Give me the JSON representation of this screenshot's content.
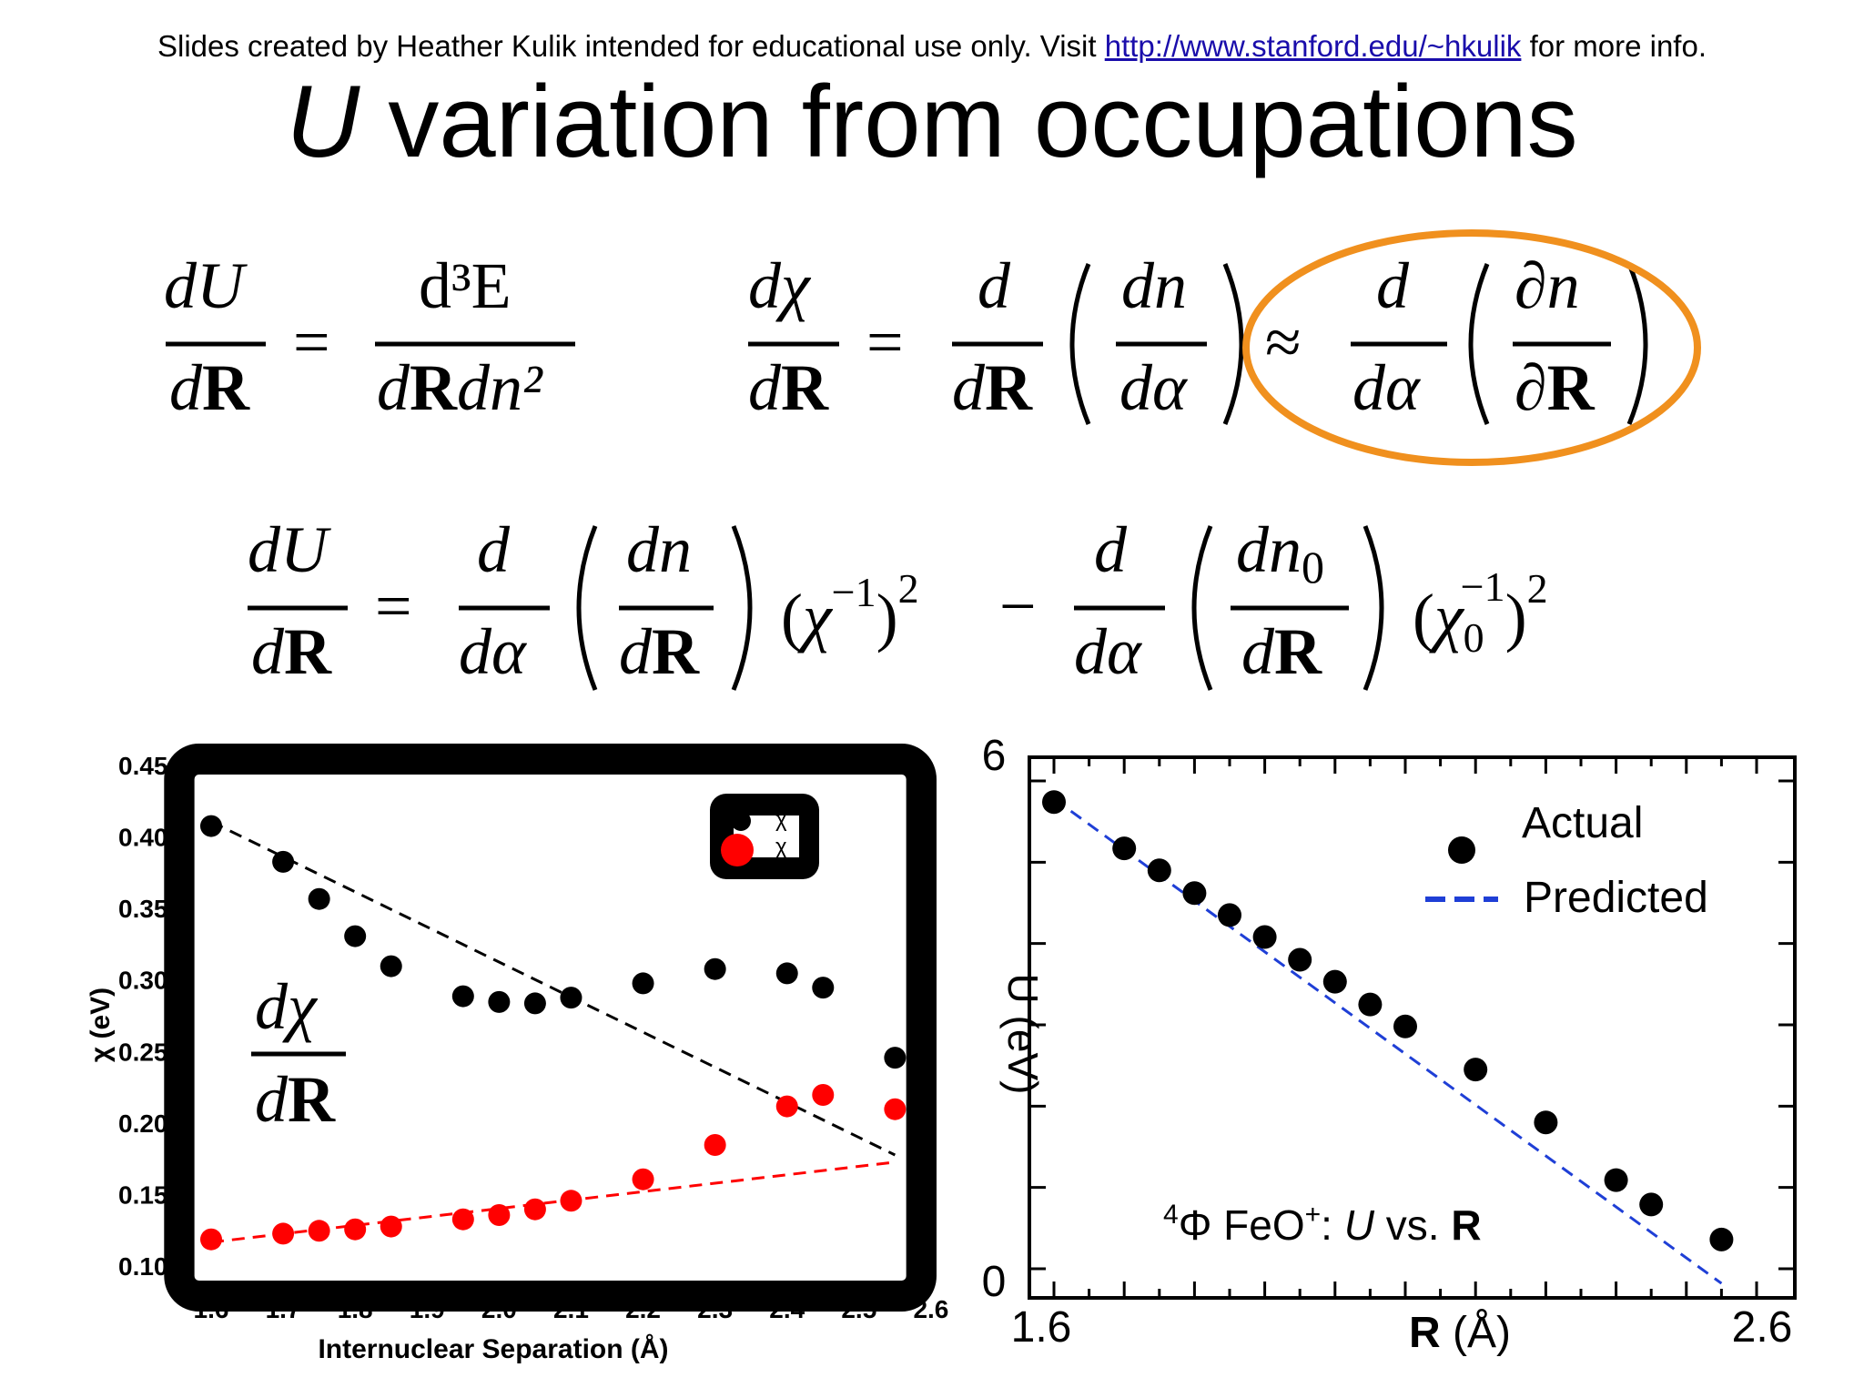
{
  "slide": {
    "credit_prefix": "Slides created by Heather Kulik intended for educational use only. Visit ",
    "credit_link": "http://www.stanford.edu/~hkulik",
    "credit_suffix": " for more info.",
    "title_var": "U",
    "title_rest": " variation from occupations"
  },
  "equations": {
    "eq1": {
      "lhs_num": "dU",
      "lhs_den_d": "d",
      "lhs_den_R": "R",
      "rhs_num": "d³E",
      "rhs_den_d": "d",
      "rhs_den_R": "R",
      "rhs_den_tail": "dn²"
    },
    "eq2": {
      "lhs_num": "dχ",
      "d": "d",
      "R": "R",
      "dn": "dn",
      "dalpha": "dα",
      "approx": "≈",
      "partial_n": "∂n",
      "partial_R": "∂R"
    },
    "eq3": {
      "lhs_num": "dU",
      "d": "d",
      "R": "R",
      "dn": "dn",
      "dalpha": "dα",
      "dn0": "dn",
      "zero": "0",
      "chi_inv": "χ",
      "minus_one": "−1",
      "square": "2",
      "minus": "−"
    },
    "highlight_color": "#f0901e"
  },
  "chart_data": [
    {
      "type": "scatter",
      "xlabel": "Internuclear Separation (Å)",
      "ylabel": "χ (eV)",
      "xlim": [
        1.6,
        2.6
      ],
      "ylim": [
        0.1,
        0.45
      ],
      "x_ticks": [
        "1.6",
        "1.7",
        "1.8",
        "1.9",
        "2.0",
        "2.1",
        "2.2",
        "2.3",
        "2.4",
        "2.5",
        "2.6"
      ],
      "y_ticks": [
        "0.10",
        "0.15",
        "0.20",
        "0.25",
        "0.30",
        "0.35",
        "0.40",
        "0.45"
      ],
      "legend": [
        "χ",
        "χ"
      ],
      "overlay_label_num": "dχ",
      "overlay_label_den_d": "d",
      "overlay_label_den_R": "R",
      "series": [
        {
          "color": "#000000",
          "x": [
            1.6,
            1.7,
            1.75,
            1.8,
            1.85,
            1.95,
            2.0,
            2.05,
            2.1,
            2.2,
            2.3,
            2.4,
            2.45,
            2.55
          ],
          "y": [
            0.407,
            0.382,
            0.356,
            0.33,
            0.309,
            0.288,
            0.284,
            0.283,
            0.287,
            0.297,
            0.307,
            0.304,
            0.294,
            0.245
          ],
          "fit": [
            [
              1.6,
              0.41
            ],
            [
              2.55,
              0.177
            ]
          ]
        },
        {
          "color": "#ff0000",
          "x": [
            1.6,
            1.7,
            1.75,
            1.8,
            1.85,
            1.95,
            2.0,
            2.05,
            2.1,
            2.2,
            2.3,
            2.4,
            2.45,
            2.55
          ],
          "y": [
            0.118,
            0.122,
            0.124,
            0.125,
            0.127,
            0.132,
            0.135,
            0.139,
            0.145,
            0.16,
            0.184,
            0.211,
            0.219,
            0.209
          ],
          "fit": [
            [
              1.6,
              0.116
            ],
            [
              2.55,
              0.172
            ]
          ]
        }
      ]
    },
    {
      "type": "scatter",
      "xlabel_bold": "R",
      "xlabel_rest": " (Å)",
      "ylabel": "U (eV)",
      "xlim": [
        1.6,
        2.6
      ],
      "ylim": [
        0,
        6
      ],
      "x_ticks": [
        "1.6",
        "2.6"
      ],
      "y_ticks": [
        "0",
        "6"
      ],
      "annotation_sup": "4",
      "annotation_phi": "Φ FeO",
      "annotation_plus": "+",
      "annotation_colon": ": ",
      "annotation_U": "U",
      "annotation_vs": " vs. ",
      "annotation_R": "R",
      "series": [
        {
          "name": "Actual",
          "color": "#000000",
          "x": [
            1.6,
            1.7,
            1.75,
            1.8,
            1.85,
            1.9,
            1.95,
            2.0,
            2.05,
            2.1,
            2.2,
            2.3,
            2.4,
            2.45,
            2.55
          ],
          "y": [
            5.74,
            5.17,
            4.9,
            4.62,
            4.35,
            4.08,
            3.8,
            3.53,
            3.25,
            2.98,
            2.45,
            1.8,
            1.09,
            0.79,
            0.36
          ]
        },
        {
          "name": "Predicted",
          "color": "#1f3fd6",
          "line": [
            [
              1.6,
              5.78
            ],
            [
              2.55,
              -0.18
            ]
          ]
        }
      ]
    }
  ]
}
